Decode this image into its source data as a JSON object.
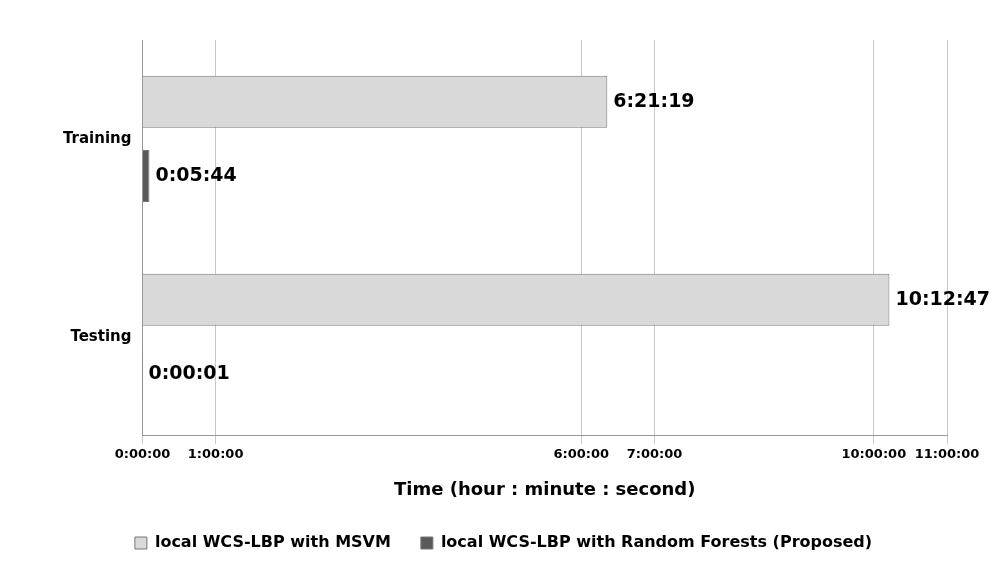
{
  "chart_data": {
    "type": "bar",
    "orientation": "horizontal",
    "xlabel": "Time (hour : minute : second)",
    "categories": [
      "Training",
      "Testing"
    ],
    "series": [
      {
        "name": "local WCS-LBP with MSVM",
        "color": "#d9d9d9",
        "values": [
          6.35528,
          10.21306
        ],
        "value_labels": [
          "6:21:19",
          "10:12:47"
        ]
      },
      {
        "name": "local WCS-LBP with Random Forests (Proposed)",
        "color": "#595959",
        "values": [
          0.09556,
          0.00028
        ],
        "value_labels": [
          "0:05:44",
          "0:00:01"
        ]
      }
    ],
    "xlim": [
      0,
      11
    ],
    "xticks": [
      {
        "value": 0,
        "label": "0:00:00"
      },
      {
        "value": 1,
        "label": "1:00:00"
      },
      {
        "value": 6,
        "label": "6:00:00"
      },
      {
        "value": 7,
        "label": "7:00:00"
      },
      {
        "value": 10,
        "label": "10:00:00"
      },
      {
        "value": 11,
        "label": "11:00:00"
      }
    ],
    "grid": "x",
    "legend": "bottom"
  }
}
